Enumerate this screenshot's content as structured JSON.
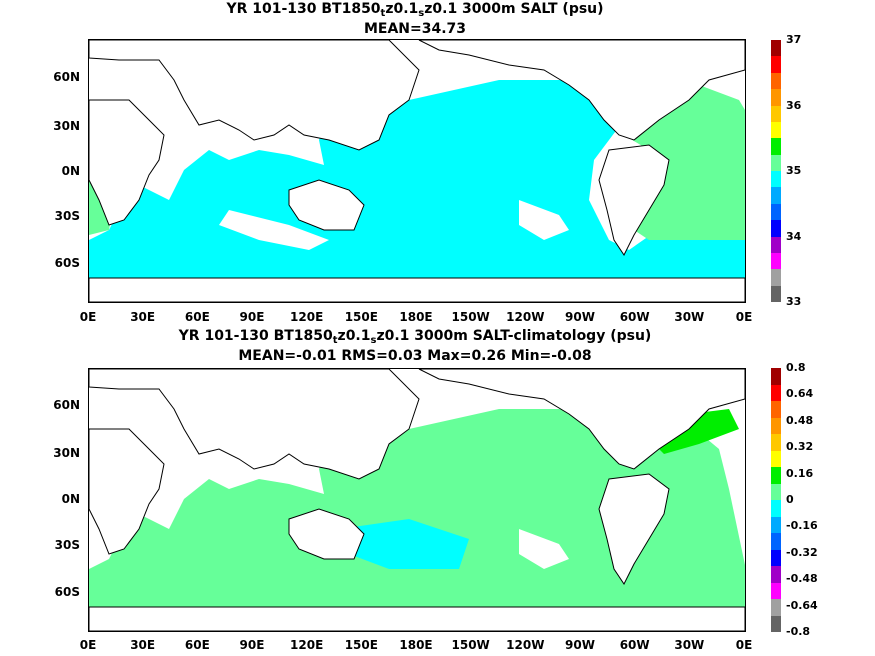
{
  "panel1": {
    "title_pre": "YR 101-130 BT1850",
    "sub1": "t",
    "mid": "z0.1",
    "sub2": "s",
    "title_post": "z0.1 3000m SALT (psu)",
    "stats": "MEAN=34.73",
    "colorbar_ticks": [
      "37",
      "36",
      "35",
      "34",
      "33"
    ],
    "colors": [
      "#646464",
      "#a0a0a0",
      "#ff00ff",
      "#a000c8",
      "#0000ff",
      "#0064ff",
      "#00aaff",
      "#00ffff",
      "#66ff99",
      "#00ee00",
      "#ffff00",
      "#ffc800",
      "#ff9600",
      "#ff6400",
      "#ff0000",
      "#a00000"
    ]
  },
  "panel2": {
    "title_pre": "YR 101-130 BT1850",
    "sub1": "t",
    "mid": "z0.1",
    "sub2": "s",
    "title_post": "z0.1 3000m SALT-climatology (psu)",
    "stats": "MEAN=-0.01   RMS=0.03   Max=0.26   Min=-0.08",
    "colorbar_ticks": [
      "0.8",
      "0.64",
      "0.48",
      "0.32",
      "0.16",
      "0",
      "-0.16",
      "-0.32",
      "-0.48",
      "-0.64",
      "-0.8"
    ],
    "colors": [
      "#646464",
      "#a0a0a0",
      "#ff00ff",
      "#a000c8",
      "#0000ff",
      "#0064ff",
      "#00aaff",
      "#00ffff",
      "#66ff99",
      "#00ee00",
      "#ffff00",
      "#ffc800",
      "#ff9600",
      "#ff6400",
      "#ff0000",
      "#a00000"
    ]
  },
  "axes": {
    "lat_labels": [
      "60N",
      "30N",
      "0N",
      "30S",
      "60S"
    ],
    "lon_labels": [
      "0E",
      "30E",
      "60E",
      "90E",
      "120E",
      "150E",
      "180E",
      "150W",
      "120W",
      "90W",
      "60W",
      "30W",
      "0E"
    ]
  }
}
